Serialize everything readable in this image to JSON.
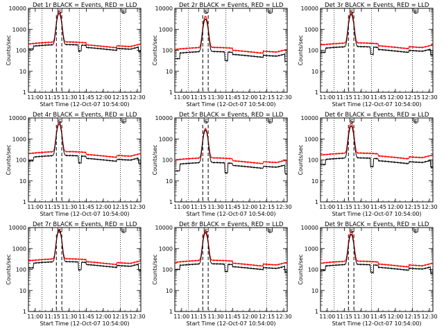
{
  "figure": {
    "background": "#ffffff",
    "axis_color": "#000000"
  },
  "chart_data": [
    {
      "type": "line",
      "title": "Det 1r BLACK = Events, RED = LLD",
      "xlabel": "Start Time (12-Oct-07 10:54:00)",
      "ylabel": "Counts/sec",
      "xlim": [
        10.9,
        12.55
      ],
      "ylim": [
        1,
        10000
      ],
      "ylog": true,
      "x_ticks": [
        "11:00",
        "11:15",
        "11:30",
        "11:45",
        "12:00",
        "12:15",
        "12:30"
      ],
      "y_ticks": [
        "1",
        "10",
        "100",
        "1000",
        "10000"
      ],
      "x_tick_values": [
        11.0,
        11.25,
        11.5,
        11.75,
        12.0,
        12.25,
        12.5
      ],
      "flare_peak_time": 11.35,
      "peak_events": 5500,
      "peak_lld": 7000,
      "events_base": 150,
      "lld_base": 200,
      "events_gap_level": 115,
      "series": [
        {
          "name": "BLACK = Events",
          "color": "#000000"
        },
        {
          "name": "RED = LLD",
          "color": "#ff0000"
        }
      ],
      "annotations": {
        "dotted_lines": [
          11.1,
          11.65,
          12.25
        ],
        "dashed_lines": [
          11.31,
          11.39
        ],
        "labels": [
          {
            "text": "S",
            "x": 11.36
          },
          {
            "text": "E",
            "x": 12.3
          }
        ]
      }
    },
    {
      "type": "line",
      "title": "Det 2r BLACK = Events, RED = LLD",
      "xlabel": "Start Time (12-Oct-07 10:54:00)",
      "ylabel": "Counts/sec",
      "xlim": [
        10.9,
        12.55
      ],
      "ylim": [
        1,
        10000
      ],
      "ylog": true,
      "x_ticks": [
        "11:00",
        "11:15",
        "11:30",
        "11:45",
        "12:00",
        "12:15",
        "12:30"
      ],
      "y_ticks": [
        "1",
        "10",
        "100",
        "1000",
        "10000"
      ],
      "x_tick_values": [
        11.0,
        11.25,
        11.5,
        11.75,
        12.0,
        12.25,
        12.5
      ],
      "flare_peak_time": 11.35,
      "peak_events": 3000,
      "peak_lld": 4000,
      "events_base": 70,
      "lld_base": 110,
      "events_gap_level": 40,
      "series": [
        {
          "name": "BLACK = Events",
          "color": "#000000"
        },
        {
          "name": "RED = LLD",
          "color": "#ff0000"
        }
      ],
      "annotations": {
        "dotted_lines": [
          11.1,
          11.65,
          12.25
        ],
        "dashed_lines": [
          11.31,
          11.39
        ],
        "labels": [
          {
            "text": "S",
            "x": 11.36
          },
          {
            "text": "E",
            "x": 12.3
          }
        ]
      }
    },
    {
      "type": "line",
      "title": "Det 3r BLACK = Events, RED = LLD",
      "xlabel": "Start Time (12-Oct-07 10:54:00)",
      "ylabel": "Counts/sec",
      "xlim": [
        10.9,
        12.55
      ],
      "ylim": [
        1,
        10000
      ],
      "ylog": true,
      "x_ticks": [
        "11:00",
        "11:15",
        "11:30",
        "11:45",
        "12:00",
        "12:15",
        "12:30"
      ],
      "y_ticks": [
        "1",
        "10",
        "100",
        "1000",
        "10000"
      ],
      "x_tick_values": [
        11.0,
        11.25,
        11.5,
        11.75,
        12.0,
        12.25,
        12.5
      ],
      "flare_peak_time": 11.35,
      "peak_events": 5000,
      "peak_lld": 6500,
      "events_base": 120,
      "lld_base": 180,
      "events_gap_level": 80,
      "series": [
        {
          "name": "BLACK = Events",
          "color": "#000000"
        },
        {
          "name": "RED = LLD",
          "color": "#ff0000"
        }
      ],
      "annotations": {
        "dotted_lines": [
          11.1,
          11.65,
          12.25
        ],
        "dashed_lines": [
          11.31,
          11.39
        ],
        "labels": [
          {
            "text": "S",
            "x": 11.36
          },
          {
            "text": "E",
            "x": 12.3
          }
        ]
      }
    },
    {
      "type": "line",
      "title": "Det 4r BLACK = Events, RED = LLD",
      "xlabel": "Start Time (12-Oct-07 10:54:00)",
      "ylabel": "Counts/sec",
      "xlim": [
        10.9,
        12.55
      ],
      "ylim": [
        1,
        10000
      ],
      "ylog": true,
      "x_ticks": [
        "11:00",
        "11:15",
        "11:30",
        "11:45",
        "12:00",
        "12:15",
        "12:30"
      ],
      "y_ticks": [
        "1",
        "10",
        "100",
        "1000",
        "10000"
      ],
      "x_tick_values": [
        11.0,
        11.25,
        11.5,
        11.75,
        12.0,
        12.25,
        12.5
      ],
      "flare_peak_time": 11.35,
      "peak_events": 5000,
      "peak_lld": 6000,
      "events_base": 130,
      "lld_base": 200,
      "events_gap_level": 90,
      "series": [
        {
          "name": "BLACK = Events",
          "color": "#000000"
        },
        {
          "name": "RED = LLD",
          "color": "#ff0000"
        }
      ],
      "annotations": {
        "dotted_lines": [
          11.1,
          11.65,
          12.25
        ],
        "dashed_lines": [
          11.31,
          11.39
        ],
        "labels": [
          {
            "text": "S",
            "x": 11.36
          },
          {
            "text": "E",
            "x": 12.3
          }
        ]
      }
    },
    {
      "type": "line",
      "title": "Det 5r BLACK = Events, RED = LLD",
      "xlabel": "Start Time (12-Oct-07 10:54:00)",
      "ylabel": "Counts/sec",
      "xlim": [
        10.9,
        12.55
      ],
      "ylim": [
        1,
        10000
      ],
      "ylog": true,
      "x_ticks": [
        "11:00",
        "11:15",
        "11:30",
        "11:45",
        "12:00",
        "12:15",
        "12:30"
      ],
      "y_ticks": [
        "1",
        "10",
        "100",
        "1000",
        "10000"
      ],
      "x_tick_values": [
        11.0,
        11.25,
        11.5,
        11.75,
        12.0,
        12.25,
        12.5
      ],
      "flare_peak_time": 11.35,
      "peak_events": 2500,
      "peak_lld": 3000,
      "events_base": 60,
      "lld_base": 100,
      "events_gap_level": 30,
      "series": [
        {
          "name": "BLACK = Events",
          "color": "#000000"
        },
        {
          "name": "RED = LLD",
          "color": "#ff0000"
        }
      ],
      "annotations": {
        "dotted_lines": [
          11.1,
          11.65,
          12.25
        ],
        "dashed_lines": [
          11.31,
          11.39
        ],
        "labels": [
          {
            "text": "S",
            "x": 11.36
          },
          {
            "text": "E",
            "x": 12.3
          }
        ]
      }
    },
    {
      "type": "line",
      "title": "Det 6r BLACK = Events, RED = LLD",
      "xlabel": "Start Time (12-Oct-07 10:54:00)",
      "ylabel": "Counts/sec",
      "xlim": [
        10.9,
        12.55
      ],
      "ylim": [
        1,
        10000
      ],
      "ylog": true,
      "x_ticks": [
        "11:00",
        "11:15",
        "11:30",
        "11:45",
        "12:00",
        "12:15",
        "12:30"
      ],
      "y_ticks": [
        "1",
        "10",
        "100",
        "1000",
        "10000"
      ],
      "x_tick_values": [
        11.0,
        11.25,
        11.5,
        11.75,
        12.0,
        12.25,
        12.5
      ],
      "flare_peak_time": 11.35,
      "peak_events": 4000,
      "peak_lld": 5500,
      "events_base": 100,
      "lld_base": 170,
      "events_gap_level": 60,
      "series": [
        {
          "name": "BLACK = Events",
          "color": "#000000"
        },
        {
          "name": "RED = LLD",
          "color": "#ff0000"
        }
      ],
      "annotations": {
        "dotted_lines": [
          11.1,
          11.65,
          12.25
        ],
        "dashed_lines": [
          11.31,
          11.39
        ],
        "labels": [
          {
            "text": "S",
            "x": 11.36
          },
          {
            "text": "E",
            "x": 12.3
          }
        ]
      }
    },
    {
      "type": "line",
      "title": "Det 7r BLACK = Events, RED = LLD",
      "xlabel": "Start Time (12-Oct-07 10:54:00)",
      "ylabel": "Counts/sec",
      "xlim": [
        10.9,
        12.55
      ],
      "ylim": [
        1,
        10000
      ],
      "ylog": true,
      "x_ticks": [
        "11:00",
        "11:15",
        "11:30",
        "11:45",
        "12:00",
        "12:15",
        "12:30"
      ],
      "y_ticks": [
        "1",
        "10",
        "100",
        "1000",
        "10000"
      ],
      "x_tick_values": [
        11.0,
        11.25,
        11.5,
        11.75,
        12.0,
        12.25,
        12.5
      ],
      "flare_peak_time": 11.35,
      "peak_events": 7000,
      "peak_lld": 8000,
      "events_base": 190,
      "lld_base": 260,
      "events_gap_level": 120,
      "series": [
        {
          "name": "BLACK = Events",
          "color": "#000000"
        },
        {
          "name": "RED = LLD",
          "color": "#ff0000"
        }
      ],
      "annotations": {
        "dotted_lines": [
          11.1,
          11.65,
          12.25
        ],
        "dashed_lines": [
          11.31,
          11.39
        ],
        "labels": [
          {
            "text": "S",
            "x": 11.36
          },
          {
            "text": "E",
            "x": 12.3
          }
        ]
      }
    },
    {
      "type": "line",
      "title": "Det 8r BLACK = Events, RED = LLD",
      "xlabel": "Start Time (12-Oct-07 10:54:00)",
      "ylabel": "Counts/sec",
      "xlim": [
        10.9,
        12.55
      ],
      "ylim": [
        1,
        10000
      ],
      "ylog": true,
      "x_ticks": [
        "11:00",
        "11:15",
        "11:30",
        "11:45",
        "12:00",
        "12:15",
        "12:30"
      ],
      "y_ticks": [
        "1",
        "10",
        "100",
        "1000",
        "10000"
      ],
      "x_tick_values": [
        11.0,
        11.25,
        11.5,
        11.75,
        12.0,
        12.25,
        12.5
      ],
      "flare_peak_time": 11.35,
      "peak_events": 5500,
      "peak_lld": 7000,
      "events_base": 150,
      "lld_base": 220,
      "events_gap_level": 100,
      "series": [
        {
          "name": "BLACK = Events",
          "color": "#000000"
        },
        {
          "name": "RED = LLD",
          "color": "#ff0000"
        }
      ],
      "annotations": {
        "dotted_lines": [
          11.1,
          11.65,
          12.25
        ],
        "dashed_lines": [
          11.31,
          11.39
        ],
        "labels": [
          {
            "text": "S",
            "x": 11.36
          },
          {
            "text": "E",
            "x": 12.3
          }
        ]
      }
    },
    {
      "type": "line",
      "title": "Det 9r BLACK = Events, RED = LLD",
      "xlabel": "Start Time (12-Oct-07 10:54:00)",
      "ylabel": "Counts/sec",
      "xlim": [
        10.9,
        12.55
      ],
      "ylim": [
        1,
        10000
      ],
      "ylog": true,
      "x_ticks": [
        "11:00",
        "11:15",
        "11:30",
        "11:45",
        "12:00",
        "12:15",
        "12:30"
      ],
      "y_ticks": [
        "1",
        "10",
        "100",
        "1000",
        "10000"
      ],
      "x_tick_values": [
        11.0,
        11.25,
        11.5,
        11.75,
        12.0,
        12.25,
        12.5
      ],
      "flare_peak_time": 11.35,
      "peak_events": 4500,
      "peak_lld": 6000,
      "events_base": 140,
      "lld_base": 200,
      "events_gap_level": 90,
      "series": [
        {
          "name": "BLACK = Events",
          "color": "#000000"
        },
        {
          "name": "RED = LLD",
          "color": "#ff0000"
        }
      ],
      "annotations": {
        "dotted_lines": [
          11.1,
          11.65,
          12.25
        ],
        "dashed_lines": [
          11.31,
          11.39
        ],
        "labels": [
          {
            "text": "S",
            "x": 11.36
          },
          {
            "text": "E",
            "x": 12.3
          }
        ]
      }
    }
  ]
}
